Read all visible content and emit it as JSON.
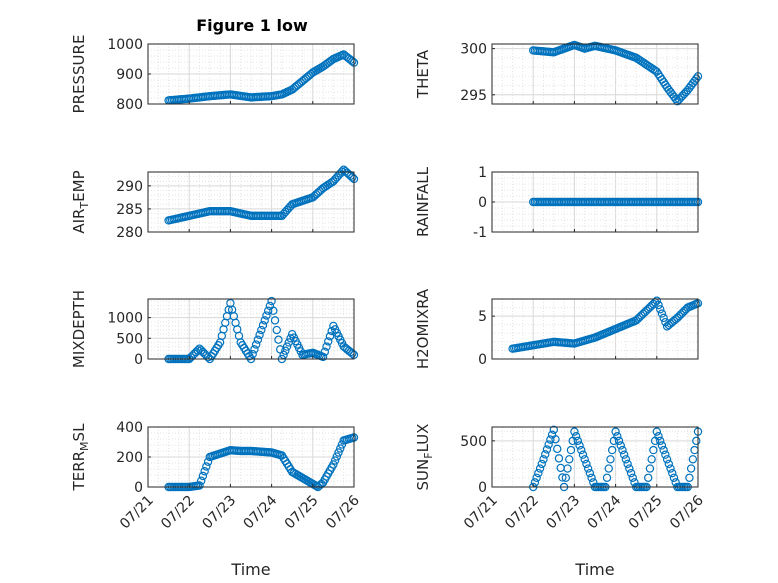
{
  "figure": {
    "title": "Figure 1 low",
    "xlabel": "Time",
    "x_tick_labels": [
      "07/21",
      "07/22",
      "07/23",
      "07/24",
      "07/25",
      "07/26"
    ],
    "marker_color": "#0072BD"
  },
  "chart_data": [
    {
      "type": "scatter",
      "title": "Figure 1 low",
      "ylabel": "PRESSURE",
      "xlim": [
        "07/21",
        "07/26"
      ],
      "ylim": [
        800,
        1000
      ],
      "yticks": [
        800,
        900,
        1000
      ],
      "grid": true,
      "x": [
        "07/21 12:00",
        "07/22 00:00",
        "07/22 12:00",
        "07/23 00:00",
        "07/23 12:00",
        "07/24 00:00",
        "07/24 06:00",
        "07/24 12:00",
        "07/25 00:00",
        "07/25 06:00",
        "07/25 12:00",
        "07/25 18:00",
        "07/26 00:00"
      ],
      "y": [
        812,
        818,
        826,
        832,
        822,
        826,
        832,
        848,
        905,
        925,
        950,
        965,
        938
      ]
    },
    {
      "type": "scatter",
      "ylabel": "THETA",
      "xlim": [
        "07/21",
        "07/26"
      ],
      "ylim": [
        294,
        300.5
      ],
      "yticks": [
        295,
        300
      ],
      "grid": true,
      "x": [
        "07/22 00:00",
        "07/22 12:00",
        "07/23 00:00",
        "07/23 06:00",
        "07/23 12:00",
        "07/24 00:00",
        "07/24 12:00",
        "07/25 00:00",
        "07/25 06:00",
        "07/25 12:00",
        "07/25 18:00",
        "07/26 00:00"
      ],
      "y": [
        299.8,
        299.6,
        300.4,
        300.0,
        300.3,
        299.8,
        299.0,
        297.5,
        295.8,
        294.3,
        295.5,
        297.0
      ]
    },
    {
      "type": "scatter",
      "ylabel": "AIR_T_EMP",
      "xlim": [
        "07/21",
        "07/26"
      ],
      "ylim": [
        280,
        293
      ],
      "yticks": [
        280,
        285,
        290
      ],
      "grid": true,
      "x": [
        "07/21 12:00",
        "07/22 00:00",
        "07/22 12:00",
        "07/23 00:00",
        "07/23 12:00",
        "07/24 00:00",
        "07/24 06:00",
        "07/24 12:00",
        "07/25 00:00",
        "07/25 06:00",
        "07/25 12:00",
        "07/25 18:00",
        "07/26 00:00"
      ],
      "y": [
        282.5,
        283.5,
        284.5,
        284.5,
        283.5,
        283.5,
        283.5,
        286.0,
        287.5,
        289.5,
        291.0,
        293.5,
        291.5
      ]
    },
    {
      "type": "scatter",
      "ylabel": "RAINFALL",
      "xlim": [
        "07/21",
        "07/26"
      ],
      "ylim": [
        -1,
        1
      ],
      "yticks": [
        -1,
        0,
        1
      ],
      "grid": true,
      "x": [
        "07/22 00:00",
        "07/23 00:00",
        "07/24 00:00",
        "07/25 00:00",
        "07/26 00:00"
      ],
      "y": [
        0,
        0,
        0,
        0,
        0
      ]
    },
    {
      "type": "scatter",
      "ylabel": "MIXDEPTH",
      "xlim": [
        "07/21",
        "07/26"
      ],
      "ylim": [
        0,
        1450
      ],
      "yticks": [
        0,
        500,
        1000
      ],
      "grid": true,
      "x": [
        "07/21 12:00",
        "07/22 00:00",
        "07/22 06:00",
        "07/22 12:00",
        "07/22 18:00",
        "07/23 00:00",
        "07/23 06:00",
        "07/23 12:00",
        "07/23 18:00",
        "07/24 00:00",
        "07/24 06:00",
        "07/24 12:00",
        "07/24 18:00",
        "07/25 00:00",
        "07/25 06:00",
        "07/25 12:00",
        "07/25 18:00",
        "07/26 00:00"
      ],
      "y": [
        0,
        0,
        250,
        0,
        400,
        1350,
        400,
        0,
        700,
        1400,
        0,
        600,
        100,
        150,
        50,
        800,
        300,
        100
      ]
    },
    {
      "type": "scatter",
      "ylabel": "H2OMIXRA",
      "xlim": [
        "07/21",
        "07/26"
      ],
      "ylim": [
        0,
        7
      ],
      "yticks": [
        0,
        5
      ],
      "grid": true,
      "x": [
        "07/21 12:00",
        "07/22 00:00",
        "07/22 12:00",
        "07/23 00:00",
        "07/23 12:00",
        "07/24 00:00",
        "07/24 12:00",
        "07/25 00:00",
        "07/25 06:00",
        "07/25 12:00",
        "07/25 18:00",
        "07/26 00:00"
      ],
      "y": [
        1.2,
        1.6,
        2.0,
        1.8,
        2.5,
        3.5,
        4.5,
        6.8,
        3.8,
        4.8,
        6.0,
        6.5
      ]
    },
    {
      "type": "scatter",
      "ylabel": "TERR_M_SL",
      "xlim": [
        "07/21",
        "07/26"
      ],
      "ylim": [
        0,
        400
      ],
      "yticks": [
        0,
        200,
        400
      ],
      "grid": true,
      "x": [
        "07/21 12:00",
        "07/22 00:00",
        "07/22 06:00",
        "07/22 12:00",
        "07/23 00:00",
        "07/23 06:00",
        "07/23 12:00",
        "07/24 00:00",
        "07/24 06:00",
        "07/24 12:00",
        "07/25 00:00",
        "07/25 03:00",
        "07/25 06:00",
        "07/25 12:00",
        "07/25 18:00",
        "07/26 00:00"
      ],
      "y": [
        0,
        0,
        10,
        200,
        245,
        240,
        240,
        230,
        210,
        100,
        20,
        0,
        30,
        150,
        310,
        330
      ]
    },
    {
      "type": "scatter",
      "ylabel": "SUN_F_LUX",
      "xlim": [
        "07/21",
        "07/26"
      ],
      "ylim": [
        0,
        650
      ],
      "yticks": [
        0,
        500
      ],
      "grid": true,
      "x": [
        "07/22 00:00",
        "07/22 06:00",
        "07/22 12:00",
        "07/22 18:00",
        "07/23 00:00",
        "07/23 06:00",
        "07/23 12:00",
        "07/23 18:00",
        "07/24 00:00",
        "07/24 06:00",
        "07/24 12:00",
        "07/24 18:00",
        "07/25 00:00",
        "07/25 06:00",
        "07/25 12:00",
        "07/25 18:00",
        "07/26 00:00"
      ],
      "y": [
        0,
        300,
        620,
        0,
        600,
        300,
        0,
        0,
        600,
        300,
        0,
        0,
        600,
        300,
        0,
        0,
        600
      ]
    }
  ]
}
